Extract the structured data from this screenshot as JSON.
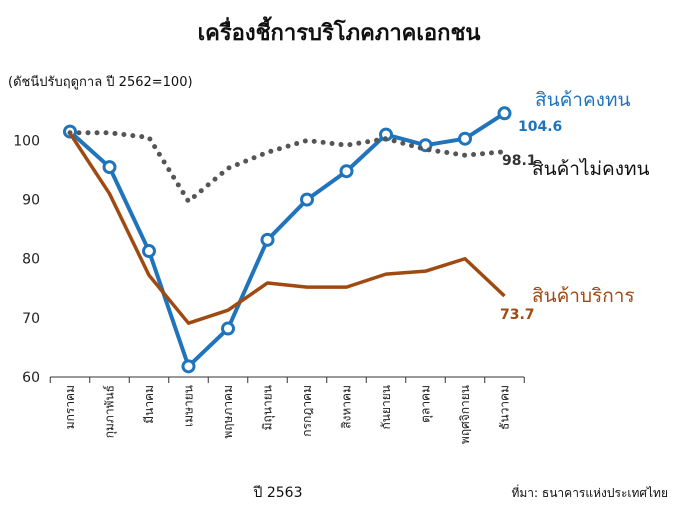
{
  "chart_data": {
    "type": "line",
    "title": "เครื่องชี้การบริโภคภาคเอกชน",
    "subtitle": "(ดัชนีปรับฤดูกาล ปี 2562=100)",
    "xlabel": "ปี 2563",
    "source": "ที่มา: ธนาคารแห่งประเทศไทย",
    "categories": [
      "มกราคม",
      "กุมภาพันธ์",
      "มีนาคม",
      "เมษายน",
      "พฤษภาคม",
      "มิถุนายน",
      "กรกฎาคม",
      "สิงหาคม",
      "กันยายน",
      "ตุลาคม",
      "พฤศจิกายน",
      "ธันวาคม"
    ],
    "ylim": [
      60,
      106
    ],
    "yticks": [
      60,
      70,
      80,
      90,
      100
    ],
    "grid": false,
    "series": [
      {
        "name": "สินค้าคงทน",
        "color": "#1f74bb",
        "style": "solid-markers",
        "values": [
          101.5,
          95.5,
          81.3,
          61.8,
          68.2,
          83.2,
          90.0,
          94.8,
          101.0,
          99.2,
          100.3,
          104.6
        ],
        "end_label": "104.6"
      },
      {
        "name": "สินค้าไม่คงทน",
        "color": "#555555",
        "style": "dotted",
        "values": [
          101.3,
          101.3,
          100.5,
          89.7,
          95.3,
          98.0,
          100.0,
          99.2,
          100.3,
          98.5,
          97.5,
          98.1
        ],
        "end_label": "98.1"
      },
      {
        "name": "สินค้าบริการ",
        "color": "#a04a12",
        "style": "solid",
        "values": [
          101.2,
          91.0,
          77.2,
          69.1,
          71.3,
          75.9,
          75.2,
          75.2,
          77.4,
          77.9,
          80.0,
          73.7
        ],
        "end_label": "73.7"
      }
    ]
  }
}
